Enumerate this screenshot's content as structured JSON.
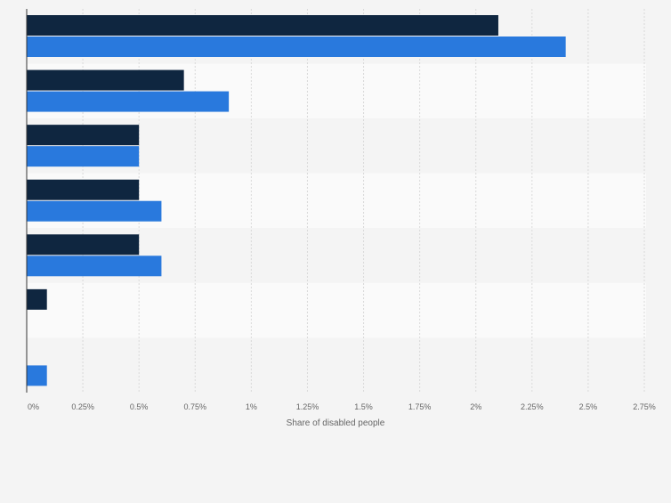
{
  "chart_data": {
    "type": "bar",
    "orientation": "horizontal",
    "title": "",
    "xlabel": "Share of disabled people",
    "ylabel": "",
    "xlim": [
      0,
      2.75
    ],
    "x_ticks": [
      "0%",
      "0.25%",
      "0.5%",
      "0.75%",
      "1%",
      "1.25%",
      "1.5%",
      "1.75%",
      "2%",
      "2.25%",
      "2.5%",
      "2.75%"
    ],
    "grid": true,
    "legend": "none",
    "categories": [
      "",
      "",
      "",
      "",
      "",
      "",
      ""
    ],
    "series": [
      {
        "values": [
          2.1,
          0.7,
          0.5,
          0.5,
          0.5,
          0.09,
          null
        ],
        "color": "#0f2640"
      },
      {
        "values": [
          2.4,
          0.9,
          0.5,
          0.6,
          0.6,
          null,
          0.09
        ],
        "color": "#2979dd"
      }
    ]
  }
}
